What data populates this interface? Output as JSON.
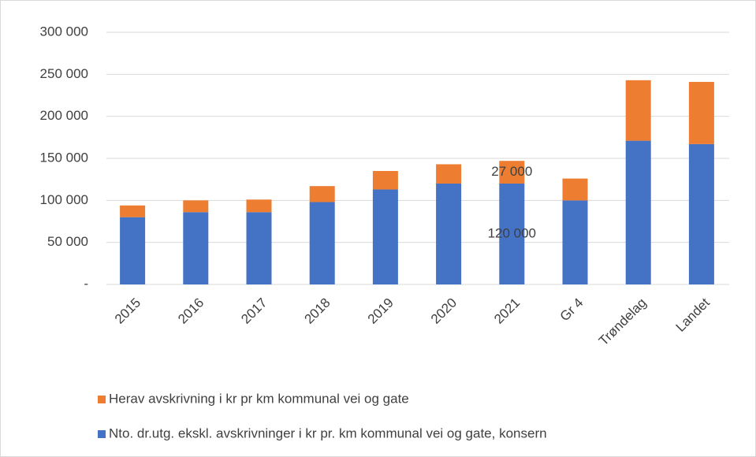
{
  "chart_data": {
    "type": "stacked_bar",
    "categories": [
      "2015",
      "2016",
      "2017",
      "2018",
      "2019",
      "2020",
      "2021",
      "Gr 4",
      "Trøndelag",
      "Landet"
    ],
    "series": [
      {
        "name": "Nto. dr.utg. ekskl. avskrivninger i kr pr. km kommunal vei og gate, konsern",
        "color": "#4472c4",
        "values": [
          80000,
          86000,
          86000,
          98000,
          113000,
          120000,
          120000,
          100000,
          171000,
          167000
        ],
        "value_labels": [
          null,
          null,
          null,
          null,
          null,
          null,
          "120 000",
          null,
          null,
          null
        ]
      },
      {
        "name": "Herav avskrivning i kr pr km kommunal vei og gate",
        "color": "#ed7d31",
        "values": [
          14000,
          14000,
          15000,
          19000,
          22000,
          23000,
          27000,
          26000,
          72000,
          74000
        ],
        "value_labels": [
          null,
          null,
          null,
          null,
          null,
          null,
          "27 000",
          null,
          null,
          null
        ]
      }
    ],
    "ylim": [
      0,
      300000
    ],
    "yticks": [
      {
        "value": 0,
        "label": "-"
      },
      {
        "value": 50000,
        "label": "50 000"
      },
      {
        "value": 100000,
        "label": "100 000"
      },
      {
        "value": 150000,
        "label": "150 000"
      },
      {
        "value": 200000,
        "label": "200 000"
      },
      {
        "value": 250000,
        "label": "250 000"
      },
      {
        "value": 300000,
        "label": "300 000"
      }
    ],
    "grid": true
  }
}
